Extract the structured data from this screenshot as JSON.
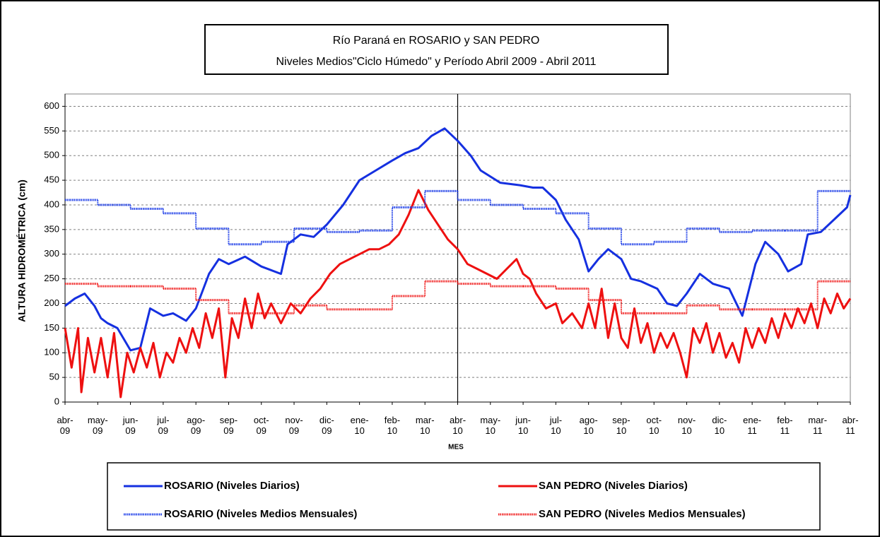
{
  "chart_data": {
    "type": "line",
    "title": [
      "Río Paraná en ROSARIO y SAN PEDRO",
      "Niveles Medios\"Ciclo Húmedo\" y Período Abril 2009 - Abril 2011"
    ],
    "y_label": "ALTURA HIDROMÉTRICA (cm)",
    "x_label": "MES",
    "xlim": [
      0,
      24
    ],
    "ylim": [
      0,
      625
    ],
    "yticks": [
      0,
      50,
      100,
      150,
      200,
      250,
      300,
      350,
      400,
      450,
      500,
      550,
      600
    ],
    "xticks": [
      {
        "value": 0,
        "label": "abr- 09"
      },
      {
        "value": 1,
        "label": "may- 09"
      },
      {
        "value": 2,
        "label": "jun- 09"
      },
      {
        "value": 3,
        "label": "jul- 09"
      },
      {
        "value": 4,
        "label": "ago- 09"
      },
      {
        "value": 5,
        "label": "sep- 09"
      },
      {
        "value": 6,
        "label": "oct- 09"
      },
      {
        "value": 7,
        "label": "nov- 09"
      },
      {
        "value": 8,
        "label": "dic- 09"
      },
      {
        "value": 9,
        "label": "ene- 10"
      },
      {
        "value": 10,
        "label": "feb- 10"
      },
      {
        "value": 11,
        "label": "mar- 10"
      },
      {
        "value": 12,
        "label": "abr- 10"
      },
      {
        "value": 13,
        "label": "may- 10"
      },
      {
        "value": 14,
        "label": "jun- 10"
      },
      {
        "value": 15,
        "label": "jul- 10"
      },
      {
        "value": 16,
        "label": "ago- 10"
      },
      {
        "value": 17,
        "label": "sep- 10"
      },
      {
        "value": 18,
        "label": "oct- 10"
      },
      {
        "value": 19,
        "label": "nov- 10"
      },
      {
        "value": 20,
        "label": "dic- 10"
      },
      {
        "value": 21,
        "label": "ene- 11"
      },
      {
        "value": 22,
        "label": "feb- 11"
      },
      {
        "value": 23,
        "label": "mar- 11"
      },
      {
        "value": 24,
        "label": "abr- 11"
      }
    ],
    "grid": true,
    "vline": 12,
    "series": [
      {
        "name": "ROSARIO (Niveles Diarios)",
        "color": "#1530e0",
        "style": "solid",
        "x": [
          0,
          0.3,
          0.6,
          0.9,
          1.1,
          1.3,
          1.6,
          2.0,
          2.3,
          2.6,
          3.0,
          3.3,
          3.7,
          4.0,
          4.4,
          4.7,
          5.0,
          5.5,
          6.0,
          6.6,
          6.8,
          7.2,
          7.6,
          8.0,
          8.5,
          9.0,
          9.5,
          10.0,
          10.4,
          10.8,
          11.2,
          11.6,
          12.0,
          12.4,
          12.7,
          13.3,
          13.9,
          14.3,
          14.6,
          15.0,
          15.3,
          15.7,
          16.0,
          16.3,
          16.6,
          17.0,
          17.3,
          17.6,
          18.1,
          18.4,
          18.7,
          19.0,
          19.4,
          19.8,
          20.3,
          20.7,
          21.1,
          21.4,
          21.8,
          22.1,
          22.5,
          22.7,
          23.1,
          23.5,
          23.9,
          24.0
        ],
        "values": [
          195,
          210,
          220,
          195,
          170,
          160,
          150,
          105,
          110,
          190,
          175,
          180,
          165,
          190,
          260,
          290,
          280,
          295,
          275,
          260,
          320,
          340,
          335,
          360,
          400,
          450,
          470,
          490,
          505,
          515,
          540,
          555,
          530,
          500,
          470,
          445,
          440,
          435,
          435,
          410,
          370,
          330,
          265,
          290,
          310,
          290,
          250,
          245,
          230,
          200,
          195,
          220,
          260,
          240,
          230,
          175,
          280,
          325,
          300,
          265,
          280,
          340,
          345,
          370,
          395,
          420
        ]
      },
      {
        "name": "SAN PEDRO (Niveles Diarios)",
        "color": "#ee1010",
        "style": "solid",
        "x": [
          0,
          0.2,
          0.4,
          0.5,
          0.7,
          0.9,
          1.1,
          1.3,
          1.5,
          1.7,
          1.9,
          2.1,
          2.3,
          2.5,
          2.7,
          2.9,
          3.1,
          3.3,
          3.5,
          3.7,
          3.9,
          4.1,
          4.3,
          4.5,
          4.7,
          4.9,
          5.1,
          5.3,
          5.5,
          5.7,
          5.9,
          6.1,
          6.3,
          6.6,
          6.9,
          7.2,
          7.5,
          7.8,
          8.1,
          8.4,
          8.7,
          9.0,
          9.3,
          9.6,
          9.9,
          10.2,
          10.5,
          10.8,
          11.1,
          11.4,
          11.7,
          12.0,
          12.3,
          12.6,
          12.9,
          13.2,
          13.5,
          13.8,
          14.0,
          14.2,
          14.4,
          14.7,
          15.0,
          15.2,
          15.5,
          15.8,
          16.0,
          16.2,
          16.4,
          16.6,
          16.8,
          17.0,
          17.2,
          17.4,
          17.6,
          17.8,
          18.0,
          18.2,
          18.4,
          18.6,
          18.8,
          19.0,
          19.2,
          19.4,
          19.6,
          19.8,
          20.0,
          20.2,
          20.4,
          20.6,
          20.8,
          21.0,
          21.2,
          21.4,
          21.6,
          21.8,
          22.0,
          22.2,
          22.4,
          22.6,
          22.8,
          23.0,
          23.2,
          23.4,
          23.6,
          23.8,
          24.0
        ],
        "values": [
          150,
          70,
          150,
          20,
          130,
          60,
          130,
          50,
          140,
          10,
          100,
          60,
          110,
          70,
          120,
          50,
          100,
          80,
          130,
          100,
          150,
          110,
          180,
          130,
          190,
          50,
          170,
          130,
          210,
          150,
          220,
          170,
          200,
          160,
          200,
          180,
          210,
          230,
          260,
          280,
          290,
          300,
          310,
          310,
          320,
          340,
          380,
          430,
          390,
          360,
          330,
          310,
          280,
          270,
          260,
          250,
          270,
          290,
          260,
          250,
          220,
          190,
          200,
          160,
          180,
          150,
          200,
          150,
          230,
          130,
          200,
          130,
          110,
          190,
          120,
          160,
          100,
          140,
          110,
          140,
          100,
          50,
          150,
          120,
          160,
          100,
          140,
          90,
          120,
          80,
          150,
          110,
          150,
          120,
          170,
          130,
          180,
          150,
          190,
          160,
          200,
          150,
          210,
          180,
          220,
          190,
          210
        ]
      },
      {
        "name": "ROSARIO (Niveles Medios Mensuales)",
        "color": "#2040e8",
        "style": "step",
        "x": [
          0,
          1,
          2,
          3,
          4,
          5,
          6,
          7,
          8,
          9,
          10,
          11,
          12,
          13,
          14,
          15,
          16,
          17,
          18,
          19,
          20,
          21,
          22,
          23
        ],
        "values": [
          410,
          400,
          392,
          383,
          352,
          320,
          325,
          352,
          345,
          348,
          395,
          428,
          410,
          400,
          392,
          383,
          352,
          320,
          325,
          352,
          345,
          348,
          348,
          428
        ]
      },
      {
        "name": "SAN PEDRO (Niveles Medios Mensuales)",
        "color": "#f02020",
        "style": "step",
        "x": [
          0,
          1,
          2,
          3,
          4,
          5,
          6,
          7,
          8,
          9,
          10,
          11,
          12,
          13,
          14,
          15,
          16,
          17,
          18,
          19,
          20,
          21,
          22,
          23
        ],
        "values": [
          240,
          235,
          235,
          230,
          207,
          180,
          180,
          196,
          188,
          188,
          215,
          245,
          240,
          235,
          235,
          230,
          207,
          180,
          180,
          196,
          188,
          188,
          188,
          245
        ]
      }
    ]
  }
}
